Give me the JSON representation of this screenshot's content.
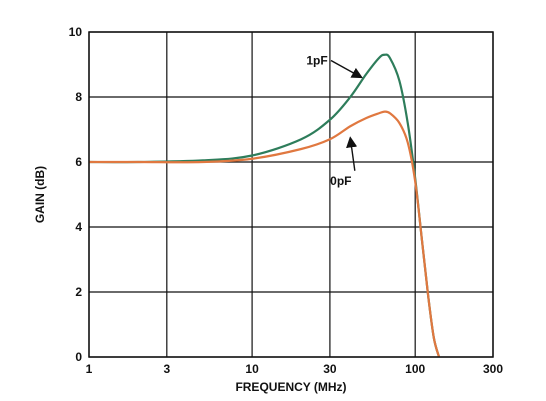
{
  "chart_data": {
    "type": "line",
    "xlabel": "FREQUENCY (MHz)",
    "ylabel": "GAIN (dB)",
    "xscale": "log",
    "xlim": [
      1,
      300
    ],
    "ylim": [
      0,
      10
    ],
    "xticks": [
      1,
      3,
      10,
      30,
      100,
      300
    ],
    "xtick_labels": [
      "1",
      "3",
      "10",
      "30",
      "100",
      "300"
    ],
    "yticks": [
      0,
      2,
      4,
      6,
      8,
      10
    ],
    "ytick_labels": [
      "0",
      "2",
      "4",
      "6",
      "8",
      "10"
    ],
    "grid": true,
    "series": [
      {
        "name": "1pF",
        "color": "#2e7d5b",
        "x": [
          1,
          2,
          5,
          10,
          20,
          30,
          40,
          50,
          60,
          65,
          70,
          80,
          90,
          100,
          110,
          120,
          130,
          140
        ],
        "y": [
          6.0,
          6.0,
          6.05,
          6.2,
          6.7,
          7.3,
          8.0,
          8.7,
          9.2,
          9.3,
          9.2,
          8.5,
          7.2,
          5.5,
          3.6,
          1.9,
          0.6,
          0
        ]
      },
      {
        "name": "0pF",
        "color": "#e07840",
        "x": [
          1,
          2,
          5,
          10,
          20,
          30,
          40,
          50,
          60,
          65,
          70,
          80,
          90,
          100,
          110,
          120,
          130,
          140
        ],
        "y": [
          6.0,
          6.0,
          6.0,
          6.1,
          6.4,
          6.7,
          7.1,
          7.35,
          7.5,
          7.55,
          7.5,
          7.2,
          6.6,
          5.4,
          3.6,
          1.9,
          0.6,
          0
        ]
      }
    ],
    "annotations": [
      {
        "text": "1pF",
        "x": 25,
        "y": 9.0,
        "arrow_to": [
          47,
          8.6
        ]
      },
      {
        "text": "0pF",
        "x": 35,
        "y": 5.3,
        "arrow_to": [
          40,
          6.75
        ]
      }
    ]
  }
}
